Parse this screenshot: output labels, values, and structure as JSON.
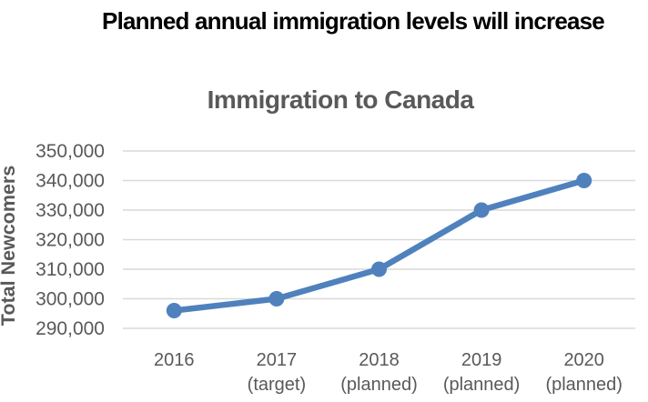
{
  "main_title": "Planned annual immigration levels will increase",
  "chart_data": {
    "type": "line",
    "title": "Immigration to Canada",
    "ylabel": "Total Newcomers",
    "xlabel": "",
    "categories": [
      "2016",
      "2017 (target)",
      "2018 (planned)",
      "2019 (planned)",
      "2020 (planned)"
    ],
    "category_lines": [
      [
        "2016",
        ""
      ],
      [
        "2017",
        "(target)"
      ],
      [
        "2018",
        "(planned)"
      ],
      [
        "2019",
        "(planned)"
      ],
      [
        "2020",
        "(planned)"
      ]
    ],
    "values": [
      296000,
      300000,
      310000,
      330000,
      340000
    ],
    "ylim": [
      290000,
      350000
    ],
    "ytick_step": 10000,
    "ytick_labels": [
      "290,000",
      "300,000",
      "310,000",
      "320,000",
      "330,000",
      "340,000",
      "350,000"
    ],
    "grid": true,
    "legend": "none",
    "marker": "circle",
    "colors": {
      "line": "#4F81BD",
      "gridline": "#D9D9D9",
      "axis_text": "#595959",
      "chart_title_color": "#595959",
      "main_title_color": "#000000",
      "background": "#FFFFFF"
    }
  }
}
